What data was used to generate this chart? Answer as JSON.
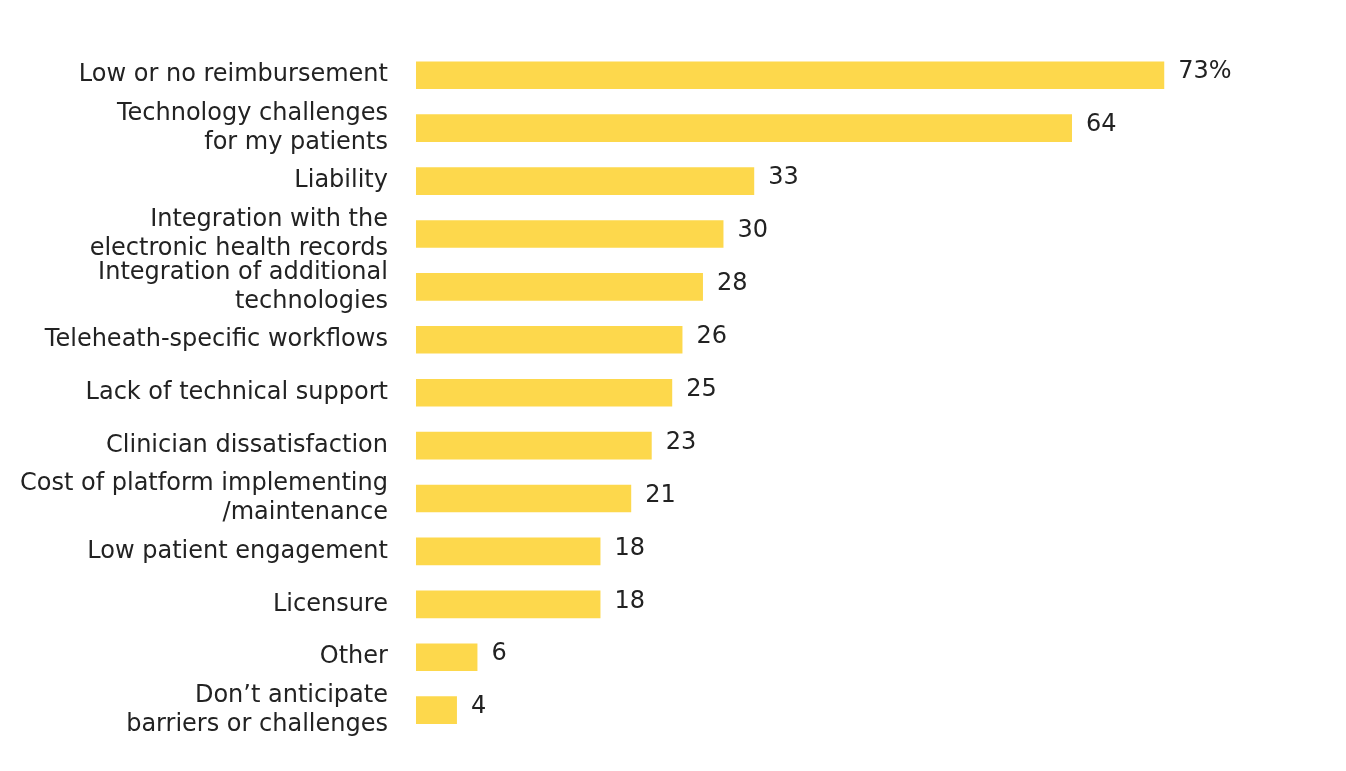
{
  "chart_data": {
    "type": "bar",
    "orientation": "horizontal",
    "categories": [
      "Low or no reimbursement",
      "Technology challenges\nfor my patients",
      "Liability",
      "Integration with the\nelectronic health records",
      "Integration of additional\ntechnologies",
      "Teleheath-specific workflows",
      "Lack of technical support",
      "Clinician dissatisfaction",
      "Cost of platform implementing\n/maintenance",
      "Low patient engagement",
      "Licensure",
      "Other",
      "Don’t anticipate\nbarriers or challenges"
    ],
    "values": [
      73,
      64,
      33,
      30,
      28,
      26,
      25,
      23,
      21,
      18,
      18,
      6,
      4
    ],
    "value_labels": [
      "73%",
      "64",
      "33",
      "30",
      "28",
      "26",
      "25",
      "23",
      "21",
      "18",
      "18",
      "6",
      "4"
    ],
    "color": "#fdd84c",
    "legend": false
  }
}
